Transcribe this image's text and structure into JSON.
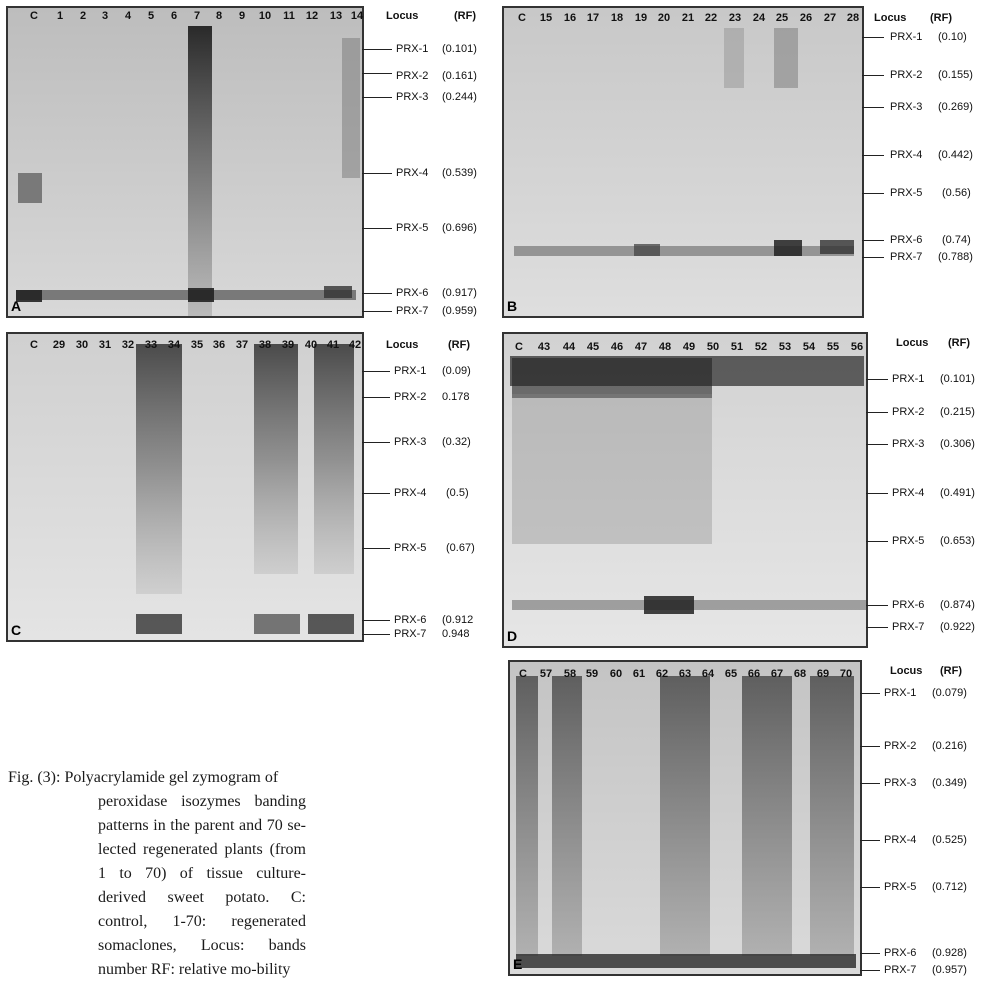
{
  "header": {
    "locus": "Locus",
    "rf": "(RF)"
  },
  "panels": [
    {
      "id": "A",
      "lanes": [
        "C",
        "1",
        "2",
        "3",
        "4",
        "5",
        "6",
        "7",
        "8",
        "9",
        "10",
        "11",
        "12",
        "13",
        "14"
      ],
      "loci": [
        {
          "name": "PRX-1",
          "rf": "(0.101)"
        },
        {
          "name": "PRX-2",
          "rf": "(0.161)"
        },
        {
          "name": "PRX-3",
          "rf": "(0.244)"
        },
        {
          "name": "PRX-4",
          "rf": "(0.539)"
        },
        {
          "name": "PRX-5",
          "rf": "(0.696)"
        },
        {
          "name": "PRX-6",
          "rf": "(0.917)"
        },
        {
          "name": "PRX-7",
          "rf": "(0.959)"
        }
      ]
    },
    {
      "id": "B",
      "lanes": [
        "C",
        "15",
        "16",
        "17",
        "18",
        "19",
        "20",
        "21",
        "22",
        "23",
        "24",
        "25",
        "26",
        "27",
        "28"
      ],
      "loci": [
        {
          "name": "PRX-1",
          "rf": "(0.10)"
        },
        {
          "name": "PRX-2",
          "rf": "(0.155)"
        },
        {
          "name": "PRX-3",
          "rf": "(0.269)"
        },
        {
          "name": "PRX-4",
          "rf": "(0.442)"
        },
        {
          "name": "PRX-5",
          "rf": "(0.56)"
        },
        {
          "name": "PRX-6",
          "rf": "(0.74)"
        },
        {
          "name": "PRX-7",
          "rf": "(0.788)"
        }
      ]
    },
    {
      "id": "C",
      "lanes": [
        "C",
        "29",
        "30",
        "31",
        "32",
        "33",
        "34",
        "35",
        "36",
        "37",
        "38",
        "39",
        "40",
        "41",
        "42"
      ],
      "loci": [
        {
          "name": "PRX-1",
          "rf": "(0.09)"
        },
        {
          "name": "PRX-2",
          "rf": "0.178"
        },
        {
          "name": "PRX-3",
          "rf": "(0.32)"
        },
        {
          "name": "PRX-4",
          "rf": "(0.5)"
        },
        {
          "name": "PRX-5",
          "rf": "(0.67)"
        },
        {
          "name": "PRX-6",
          "rf": "(0.912"
        },
        {
          "name": "PRX-7",
          "rf": "0.948"
        }
      ]
    },
    {
      "id": "D",
      "lanes": [
        "C",
        "43",
        "44",
        "45",
        "46",
        "47",
        "48",
        "49",
        "50",
        "51",
        "52",
        "53",
        "54",
        "55",
        "56"
      ],
      "loci": [
        {
          "name": "PRX-1",
          "rf": "(0.101)"
        },
        {
          "name": "PRX-2",
          "rf": "(0.215)"
        },
        {
          "name": "PRX-3",
          "rf": "(0.306)"
        },
        {
          "name": "PRX-4",
          "rf": "(0.491)"
        },
        {
          "name": "PRX-5",
          "rf": "(0.653)"
        },
        {
          "name": "PRX-6",
          "rf": "(0.874)"
        },
        {
          "name": "PRX-7",
          "rf": "(0.922)"
        }
      ]
    },
    {
      "id": "E",
      "lanes": [
        "C",
        "57",
        "58",
        "59",
        "60",
        "61",
        "62",
        "63",
        "64",
        "65",
        "66",
        "67",
        "68",
        "69",
        "70"
      ],
      "loci": [
        {
          "name": "PRX-1",
          "rf": "(0.079)"
        },
        {
          "name": "PRX-2",
          "rf": "(0.216)"
        },
        {
          "name": "PRX-3",
          "rf": "(0.349)"
        },
        {
          "name": "PRX-4",
          "rf": "(0.525)"
        },
        {
          "name": "PRX-5",
          "rf": "(0.712)"
        },
        {
          "name": "PRX-6",
          "rf": "(0.928)"
        },
        {
          "name": "PRX-7",
          "rf": "(0.957)"
        }
      ]
    }
  ],
  "caption": {
    "lead": "Fig. (3): Polyacrylamide gel zymogram of",
    "body": "peroxidase isozymes banding patterns in the parent and 70 se-lected regenerated plants (from 1 to 70) of tissue culture-derived sweet potato. C: control, 1-70: regenerated somaclones, Locus: bands number RF: relative mo-bility"
  }
}
